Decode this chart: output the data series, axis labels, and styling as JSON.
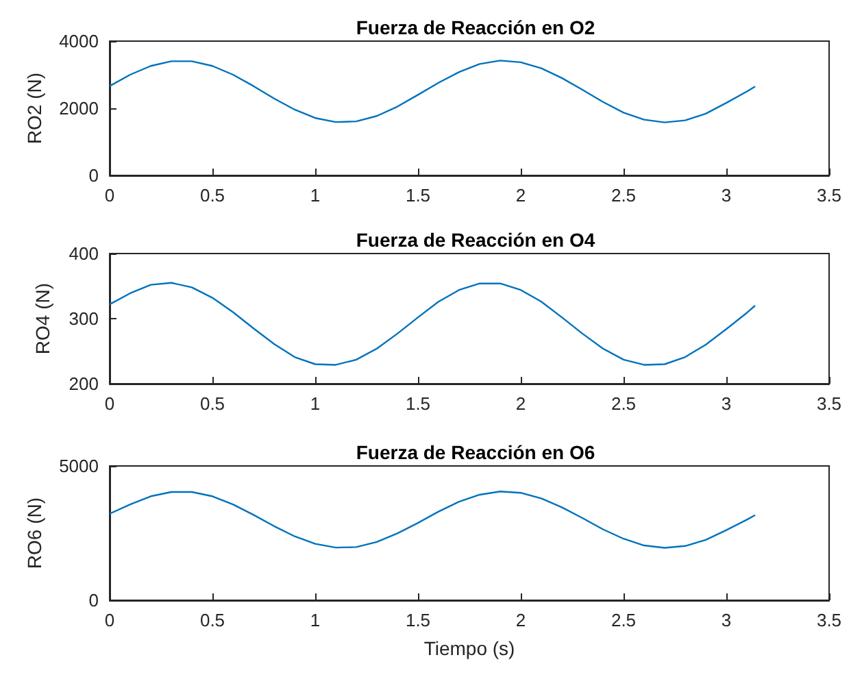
{
  "chart_data": [
    {
      "type": "line",
      "title": "Fuerza de Reacción en O2",
      "ylabel": "RO2 (N)",
      "color": "#0072bd",
      "grid": false,
      "marker": "none",
      "x": [
        0,
        0.1,
        0.2,
        0.3,
        0.4,
        0.5,
        0.6,
        0.7,
        0.8,
        0.9,
        1.0,
        1.1,
        1.2,
        1.3,
        1.4,
        1.5,
        1.6,
        1.7,
        1.8,
        1.9,
        2.0,
        2.1,
        2.2,
        2.3,
        2.4,
        2.5,
        2.6,
        2.7,
        2.8,
        2.9,
        3.0,
        3.1,
        3.14
      ],
      "values": [
        2660,
        3000,
        3260,
        3400,
        3400,
        3260,
        3000,
        2660,
        2290,
        1960,
        1710,
        1590,
        1610,
        1770,
        2050,
        2400,
        2760,
        3080,
        3320,
        3420,
        3370,
        3190,
        2900,
        2550,
        2190,
        1870,
        1660,
        1580,
        1640,
        1840,
        2160,
        2500,
        2650
      ],
      "xlim": [
        0,
        3.5
      ],
      "xticks": [
        0,
        0.5,
        1,
        1.5,
        2,
        2.5,
        3,
        3.5
      ],
      "ylim": [
        0,
        4000
      ],
      "yticks": [
        0,
        2000,
        4000
      ]
    },
    {
      "type": "line",
      "title": "Fuerza de Reacción en O4",
      "ylabel": "RO4 (N)",
      "color": "#0072bd",
      "grid": false,
      "marker": "none",
      "x": [
        0,
        0.1,
        0.2,
        0.3,
        0.4,
        0.5,
        0.6,
        0.7,
        0.8,
        0.9,
        1.0,
        1.1,
        1.2,
        1.3,
        1.4,
        1.5,
        1.6,
        1.7,
        1.8,
        1.9,
        2.0,
        2.1,
        2.2,
        2.3,
        2.4,
        2.5,
        2.6,
        2.7,
        2.8,
        2.9,
        3.0,
        3.1,
        3.14
      ],
      "values": [
        322,
        339,
        352,
        355,
        348,
        332,
        310,
        285,
        261,
        241,
        230,
        229,
        237,
        254,
        277,
        302,
        326,
        344,
        354,
        354,
        344,
        326,
        302,
        277,
        254,
        237,
        229,
        230,
        241,
        260,
        284,
        309,
        320
      ],
      "xlim": [
        0,
        3.5
      ],
      "xticks": [
        0,
        0.5,
        1,
        1.5,
        2,
        2.5,
        3,
        3.5
      ],
      "ylim": [
        200,
        400
      ],
      "yticks": [
        200,
        300,
        400
      ]
    },
    {
      "type": "line",
      "title": "Fuerza de Reacción en O6",
      "ylabel": "RO6 (N)",
      "xlabel": "Tiempo (s)",
      "color": "#0072bd",
      "grid": false,
      "marker": "none",
      "x": [
        0,
        0.1,
        0.2,
        0.3,
        0.4,
        0.5,
        0.6,
        0.7,
        0.8,
        0.9,
        1.0,
        1.1,
        1.2,
        1.3,
        1.4,
        1.5,
        1.6,
        1.7,
        1.8,
        1.9,
        2.0,
        2.1,
        2.2,
        2.3,
        2.4,
        2.5,
        2.6,
        2.7,
        2.8,
        2.9,
        3.0,
        3.1,
        3.14
      ],
      "values": [
        3220,
        3570,
        3870,
        4030,
        4030,
        3870,
        3570,
        3180,
        2760,
        2380,
        2100,
        1960,
        1980,
        2170,
        2490,
        2880,
        3300,
        3670,
        3930,
        4050,
        4000,
        3790,
        3460,
        3060,
        2640,
        2290,
        2040,
        1950,
        2020,
        2250,
        2610,
        3000,
        3170
      ],
      "xlim": [
        0,
        3.5
      ],
      "xticks": [
        0,
        0.5,
        1,
        1.5,
        2,
        2.5,
        3,
        3.5
      ],
      "ylim": [
        0,
        5000
      ],
      "yticks": [
        0,
        5000
      ]
    }
  ]
}
